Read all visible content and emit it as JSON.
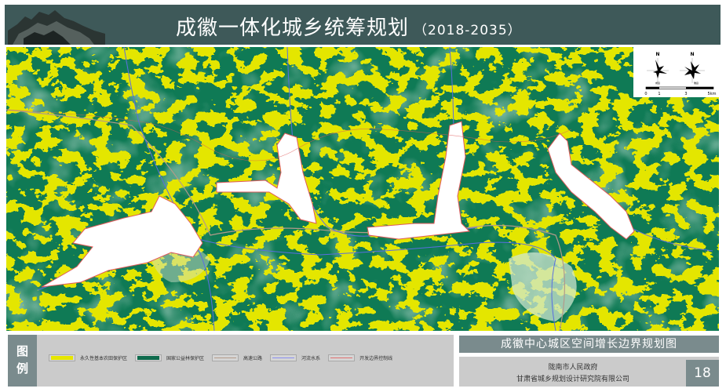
{
  "header": {
    "title": "成徽一体化城乡统筹规划",
    "years": "（2018-2035）"
  },
  "map": {
    "colors": {
      "farmland": "#e6e600",
      "forest": "#0f7a55",
      "highway": "#b39a8a",
      "river": "#5a6ee0",
      "boundary": "#e05a5a",
      "urban": "#ffffff"
    },
    "compass": {
      "north_label": "N",
      "left_label": "成县",
      "right_label": "徽县"
    },
    "scale": {
      "ticks": [
        "0",
        "1",
        "3",
        "5km"
      ]
    }
  },
  "legend": {
    "heading": [
      "图",
      "例"
    ],
    "items": [
      {
        "label": "永久性基本农田保护区",
        "type": "fill",
        "color": "#e6e600"
      },
      {
        "label": "国家公益林保护区",
        "type": "fill",
        "color": "#0f6b4d"
      },
      {
        "label": "高速公路",
        "type": "line",
        "color": "#b39a8a"
      },
      {
        "label": "河流水系",
        "type": "line",
        "color": "#8a8ef0"
      },
      {
        "label": "开发边界控制线",
        "type": "line",
        "color": "#e07070"
      }
    ]
  },
  "sheet": {
    "subtitle": "成徽中心城区空间增长边界规划图",
    "org1": "陇南市人民政府",
    "org2": "甘肃省城乡规划设计研究院有限公司",
    "page": "18"
  }
}
